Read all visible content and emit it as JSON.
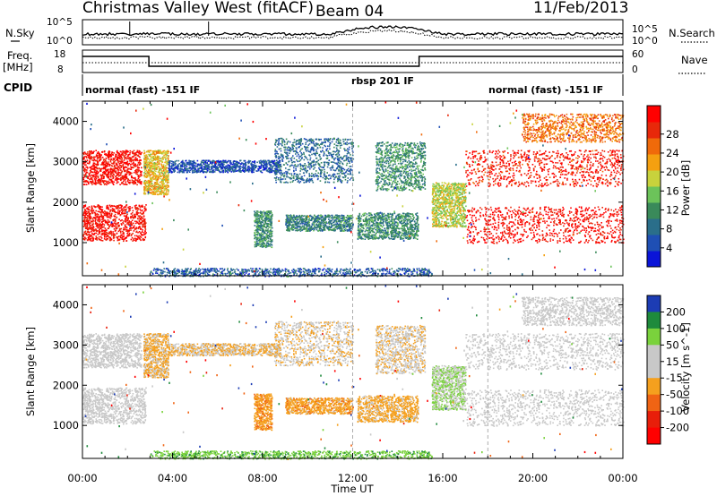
{
  "header": {
    "site": "Christmas Valley West (fitACF)",
    "beam": "Beam 04",
    "date": "11/Feb/2013"
  },
  "noise": {
    "left_label": "N.Sky",
    "right_label": "N.Search",
    "left_ticks": [
      "10^5",
      "10^0"
    ],
    "right_ticks": [
      "10^5",
      "10^0"
    ]
  },
  "freq": {
    "left_label_1": "Freq.",
    "left_label_2": "[MHz]",
    "right_label": "Nave",
    "left_ticks": [
      "18",
      "8"
    ],
    "right_ticks": [
      "60",
      "0"
    ]
  },
  "cpid": {
    "label": "CPID",
    "modes": [
      {
        "name": "normal (fast) -151 IF",
        "start_h": 0,
        "end_h": 12
      },
      {
        "name": "rbsp 201 IF",
        "start_h": 12,
        "end_h": 18
      },
      {
        "name": "normal (fast) -151 IF",
        "start_h": 18,
        "end_h": 24
      }
    ]
  },
  "chart_data": [
    {
      "type": "heatmap",
      "title": "",
      "xlabel": "Time UT",
      "ylabel": "Slant Range [km]",
      "x_ticks": [
        "00:00",
        "04:00",
        "08:00",
        "12:00",
        "16:00",
        "20:00",
        "00:00"
      ],
      "xlim_hours": [
        0,
        24
      ],
      "y_ticks": [
        "1000",
        "2000",
        "3000",
        "4000"
      ],
      "ylim_km": [
        180,
        4500
      ],
      "colorbar": {
        "label": "Power [dB]",
        "ticks": [
          "4",
          "8",
          "12",
          "16",
          "20",
          "24",
          "28"
        ],
        "range": [
          0,
          30
        ],
        "colors": [
          "#0a14d8",
          "#1f4fb4",
          "#2a6e8a",
          "#3a8a5a",
          "#6cc35a",
          "#c8d23c",
          "#f5a010",
          "#f06a0a",
          "#e8280a",
          "#ff0000"
        ]
      },
      "scatter_regions": [
        {
          "t0": 0.0,
          "t1": 2.6,
          "r0": 2450,
          "r1": 3300,
          "value": 28
        },
        {
          "t0": 0.0,
          "t1": 2.8,
          "r0": 1050,
          "r1": 1950,
          "value": 28
        },
        {
          "t0": 2.7,
          "t1": 3.8,
          "r0": 2200,
          "r1": 3300,
          "value": 18
        },
        {
          "t0": 3.8,
          "t1": 8.8,
          "r0": 2750,
          "r1": 3050,
          "value": 5
        },
        {
          "t0": 8.5,
          "t1": 12.0,
          "r0": 2500,
          "r1": 3600,
          "value": 7
        },
        {
          "t0": 7.6,
          "t1": 8.4,
          "r0": 900,
          "r1": 1800,
          "value": 10
        },
        {
          "t0": 9.0,
          "t1": 12.0,
          "r0": 1300,
          "r1": 1700,
          "value": 9
        },
        {
          "t0": 12.2,
          "t1": 14.9,
          "r0": 1100,
          "r1": 1750,
          "value": 10
        },
        {
          "t0": 13.0,
          "t1": 15.2,
          "r0": 2300,
          "r1": 3500,
          "value": 10
        },
        {
          "t0": 15.5,
          "t1": 17.0,
          "r0": 1400,
          "r1": 2500,
          "value": 16
        },
        {
          "t0": 17.0,
          "t1": 24.0,
          "r0": 1000,
          "r1": 1900,
          "value": 28
        },
        {
          "t0": 17.0,
          "t1": 24.0,
          "r0": 2400,
          "r1": 3300,
          "value": 27
        },
        {
          "t0": 19.5,
          "t1": 24.0,
          "r0": 3500,
          "r1": 4200,
          "value": 22
        },
        {
          "t0": 3.0,
          "t1": 15.5,
          "r0": 180,
          "r1": 380,
          "value": 6
        }
      ]
    },
    {
      "type": "heatmap",
      "title": "",
      "xlabel": "Time UT",
      "ylabel": "Slant Range [km]",
      "x_ticks": [
        "00:00",
        "04:00",
        "08:00",
        "12:00",
        "16:00",
        "20:00",
        "00:00"
      ],
      "xlim_hours": [
        0,
        24
      ],
      "y_ticks": [
        "1000",
        "2000",
        "3000",
        "4000"
      ],
      "ylim_km": [
        180,
        4500
      ],
      "colorbar": {
        "label": "Velocity [m s^-1]",
        "ticks": [
          "200",
          "100",
          "50",
          "15",
          "-15",
          "-50",
          "-100",
          "-200"
        ],
        "range": [
          -250,
          250
        ],
        "colors": [
          "#1c3cb4",
          "#1e8a3c",
          "#7ad23c",
          "#c8c8c8",
          "#c8c8c8",
          "#f5a01e",
          "#f06414",
          "#e81e0a",
          "#ff0000"
        ]
      },
      "scatter_regions": [
        {
          "t0": 0.0,
          "t1": 2.6,
          "r0": 2450,
          "r1": 3300,
          "value": 0
        },
        {
          "t0": 0.0,
          "t1": 2.8,
          "r0": 1050,
          "r1": 1950,
          "value": 0
        },
        {
          "t0": 2.7,
          "t1": 3.8,
          "r0": 2200,
          "r1": 3300,
          "value": -40
        },
        {
          "t0": 3.8,
          "t1": 8.8,
          "r0": 2750,
          "r1": 3050,
          "value": -30
        },
        {
          "t0": 8.5,
          "t1": 12.0,
          "r0": 2500,
          "r1": 3600,
          "value": -20
        },
        {
          "t0": 7.6,
          "t1": 8.4,
          "r0": 900,
          "r1": 1800,
          "value": -60
        },
        {
          "t0": 9.0,
          "t1": 12.0,
          "r0": 1300,
          "r1": 1700,
          "value": -55
        },
        {
          "t0": 12.2,
          "t1": 14.9,
          "r0": 1100,
          "r1": 1750,
          "value": -45
        },
        {
          "t0": 13.0,
          "t1": 15.2,
          "r0": 2300,
          "r1": 3500,
          "value": -20
        },
        {
          "t0": 15.5,
          "t1": 17.0,
          "r0": 1400,
          "r1": 2500,
          "value": 30
        },
        {
          "t0": 17.0,
          "t1": 24.0,
          "r0": 1000,
          "r1": 1900,
          "value": 0
        },
        {
          "t0": 17.0,
          "t1": 24.0,
          "r0": 2400,
          "r1": 3300,
          "value": 0
        },
        {
          "t0": 19.5,
          "t1": 24.0,
          "r0": 3500,
          "r1": 4200,
          "value": 0
        },
        {
          "t0": 3.0,
          "t1": 15.5,
          "r0": 180,
          "r1": 380,
          "value": 60
        }
      ]
    }
  ]
}
